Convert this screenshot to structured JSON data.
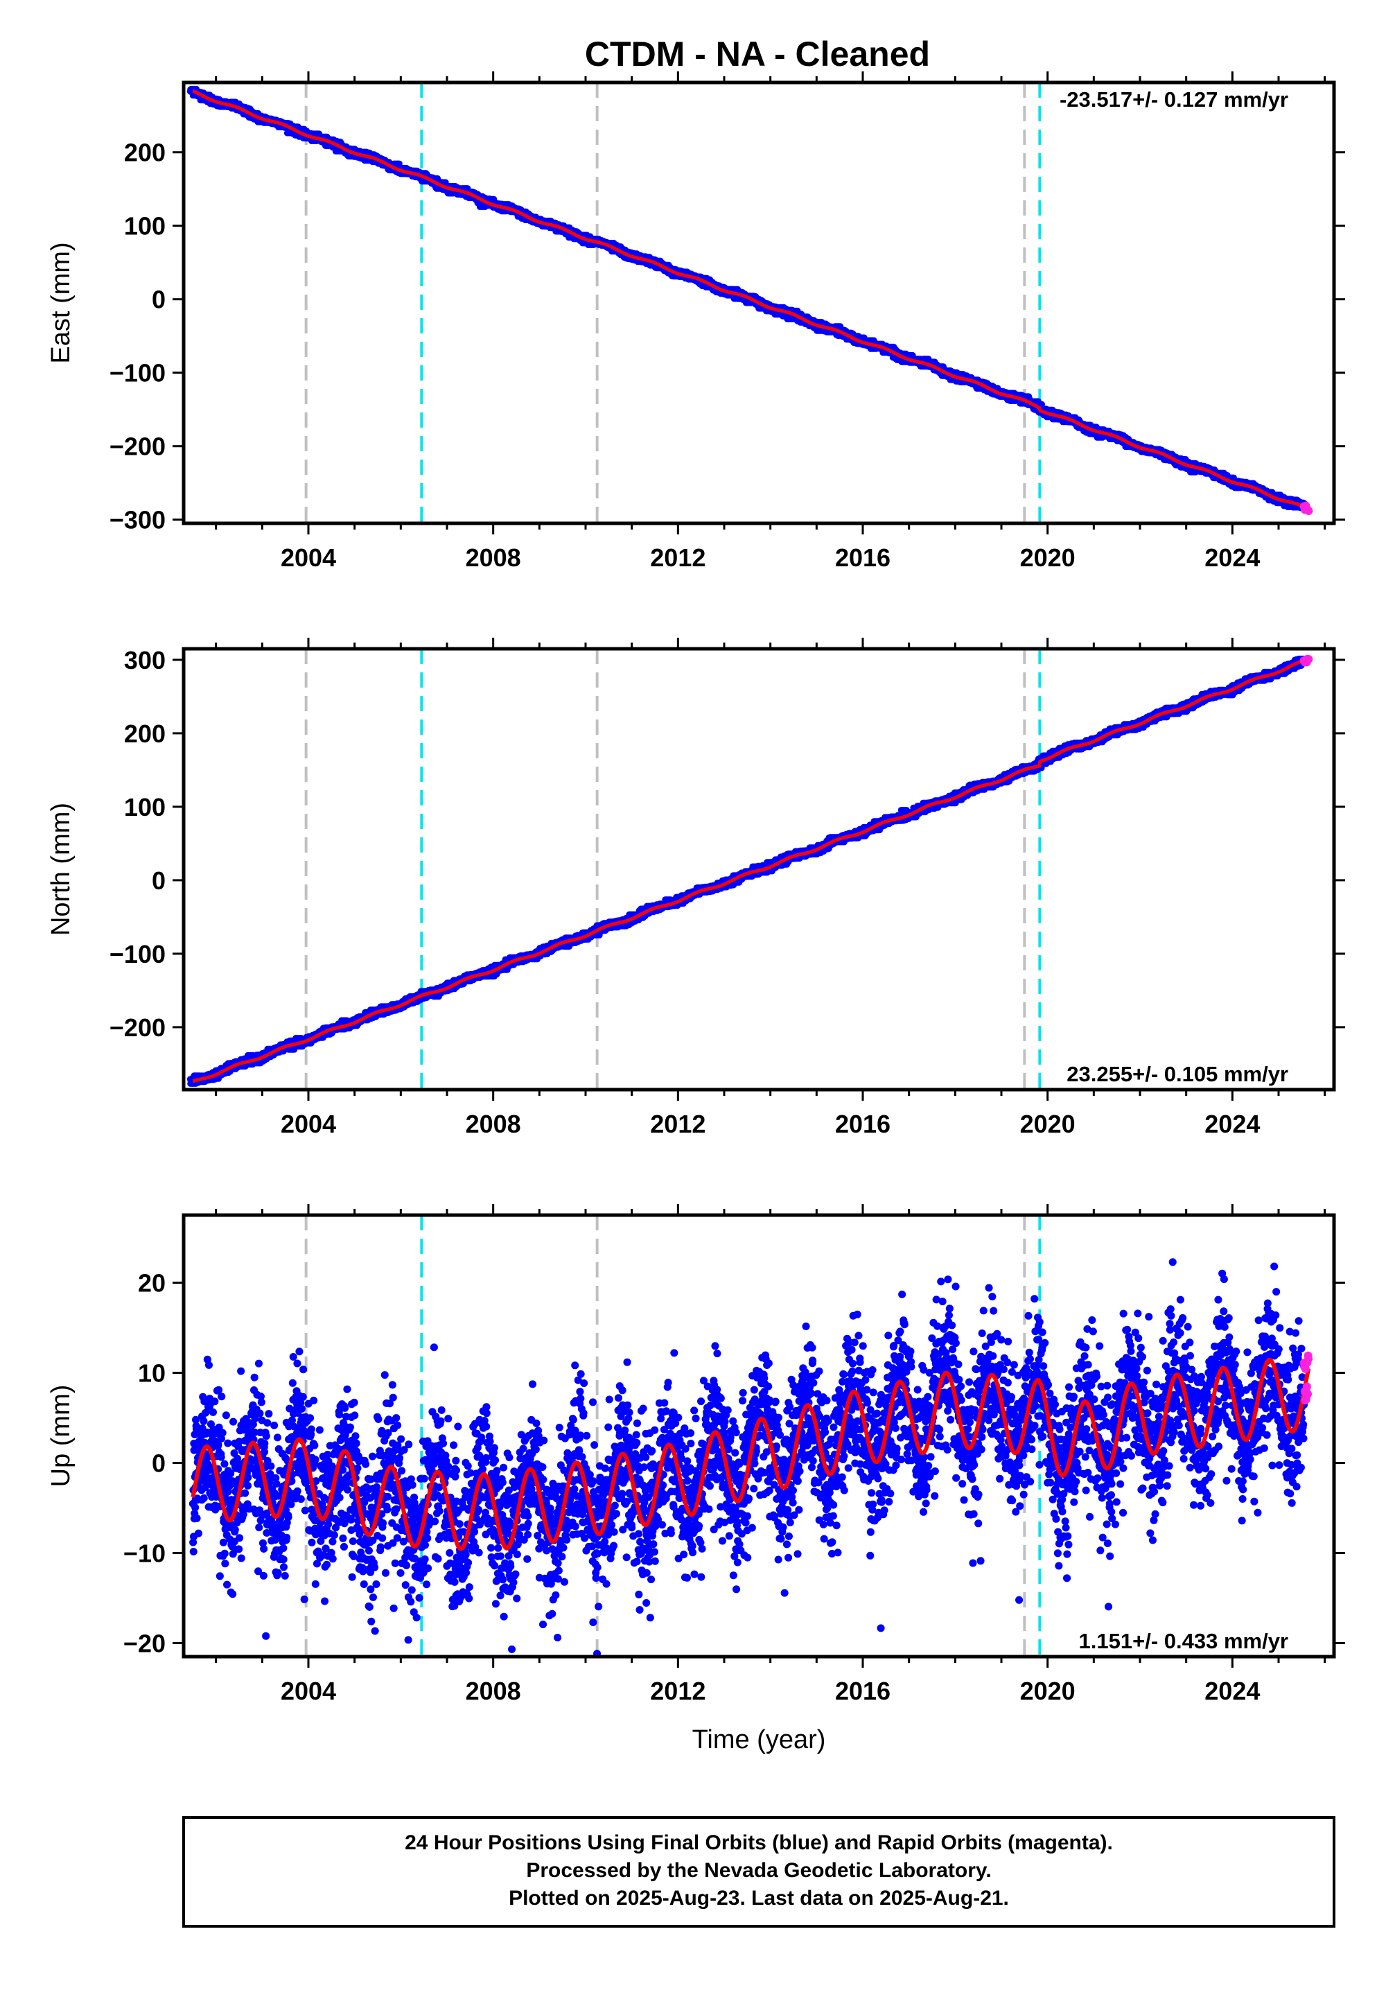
{
  "title": "CTDM  - NA - Cleaned",
  "colors": {
    "final_orbits": "#0000ff",
    "rapid_orbits": "#ff22dd",
    "model": "#ff0000",
    "equipment_change": "#c0c0c0",
    "earthquake": "#00e5ee"
  },
  "x_axis": {
    "label": "Time (year)",
    "range": [
      2001.3,
      2026.2
    ],
    "ticks": [
      2004,
      2008,
      2012,
      2016,
      2020,
      2024
    ],
    "tick_labels": [
      "2004",
      "2008",
      "2012",
      "2016",
      "2020",
      "2024"
    ]
  },
  "event_lines": {
    "gray_dashed": [
      2003.95,
      2010.25,
      2019.5
    ],
    "cyan_dashed": [
      2006.45,
      2019.83
    ]
  },
  "chart_data": [
    {
      "type": "scatter",
      "component": "East",
      "ylabel": "East (mm)",
      "ylim": [
        -305,
        295
      ],
      "yticks": [
        200,
        100,
        0,
        -100,
        -200,
        -300
      ],
      "ytick_labels": [
        "200",
        "100",
        "0",
        "−100",
        "−200",
        "−300"
      ],
      "rate_label": "-23.517+/- 0.127 mm/yr",
      "rate_position": "top-right",
      "final_data_range": [
        2001.5,
        2025.55
      ],
      "rapid_data_range": [
        2025.55,
        2025.65
      ],
      "trend": {
        "start": [
          2001.5,
          282
        ],
        "end": [
          2025.65,
          -286
        ]
      },
      "steps": [
        {
          "year": 2019.83,
          "offset": -3
        }
      ]
    },
    {
      "type": "scatter",
      "component": "North",
      "ylabel": "North (mm)",
      "ylim": [
        -285,
        315
      ],
      "yticks": [
        300,
        200,
        100,
        0,
        -100,
        -200
      ],
      "ytick_labels": [
        "300",
        "200",
        "100",
        "0",
        "−100",
        "−200"
      ],
      "rate_label": "23.255+/- 0.105 mm/yr",
      "rate_position": "bottom-right",
      "final_data_range": [
        2001.5,
        2025.55
      ],
      "rapid_data_range": [
        2025.55,
        2025.65
      ],
      "trend": {
        "start": [
          2001.5,
          -275
        ],
        "end": [
          2025.65,
          300
        ]
      },
      "steps": [
        {
          "year": 2019.83,
          "offset": 6
        }
      ]
    },
    {
      "type": "scatter",
      "component": "Up",
      "ylabel": "Up (mm)",
      "xlabel": "Time (year)",
      "ylim": [
        -21.5,
        27.5
      ],
      "yticks": [
        20,
        10,
        0,
        -10,
        -20
      ],
      "ytick_labels": [
        "20",
        "10",
        "0",
        "−10",
        "−20"
      ],
      "rate_label": "1.151+/- 0.433 mm/yr",
      "rate_position": "bottom-right",
      "final_data_range": [
        2001.5,
        2025.55
      ],
      "rapid_data_range": [
        2025.55,
        2025.65
      ],
      "model_mean": [
        [
          2001.5,
          -2.5
        ],
        [
          2004.0,
          -1.5
        ],
        [
          2006.0,
          -5.0
        ],
        [
          2008.0,
          -5.5
        ],
        [
          2010.0,
          -4.0
        ],
        [
          2012.0,
          -2.0
        ],
        [
          2014.0,
          1.0
        ],
        [
          2016.0,
          4.0
        ],
        [
          2018.0,
          6.0
        ],
        [
          2019.8,
          5.0
        ],
        [
          2020.5,
          2.0
        ],
        [
          2022.0,
          5.0
        ],
        [
          2024.0,
          6.5
        ],
        [
          2025.65,
          8.0
        ]
      ],
      "model_amplitude": 4.2,
      "model_phase": 0.55,
      "scatter_spread": 4.0
    }
  ],
  "footer": {
    "line1": "24 Hour Positions Using Final Orbits (blue) and Rapid Orbits (magenta).",
    "line2": "Processed by the Nevada Geodetic Laboratory.",
    "line3": "Plotted on 2025-Aug-23. Last data on 2025-Aug-21."
  }
}
